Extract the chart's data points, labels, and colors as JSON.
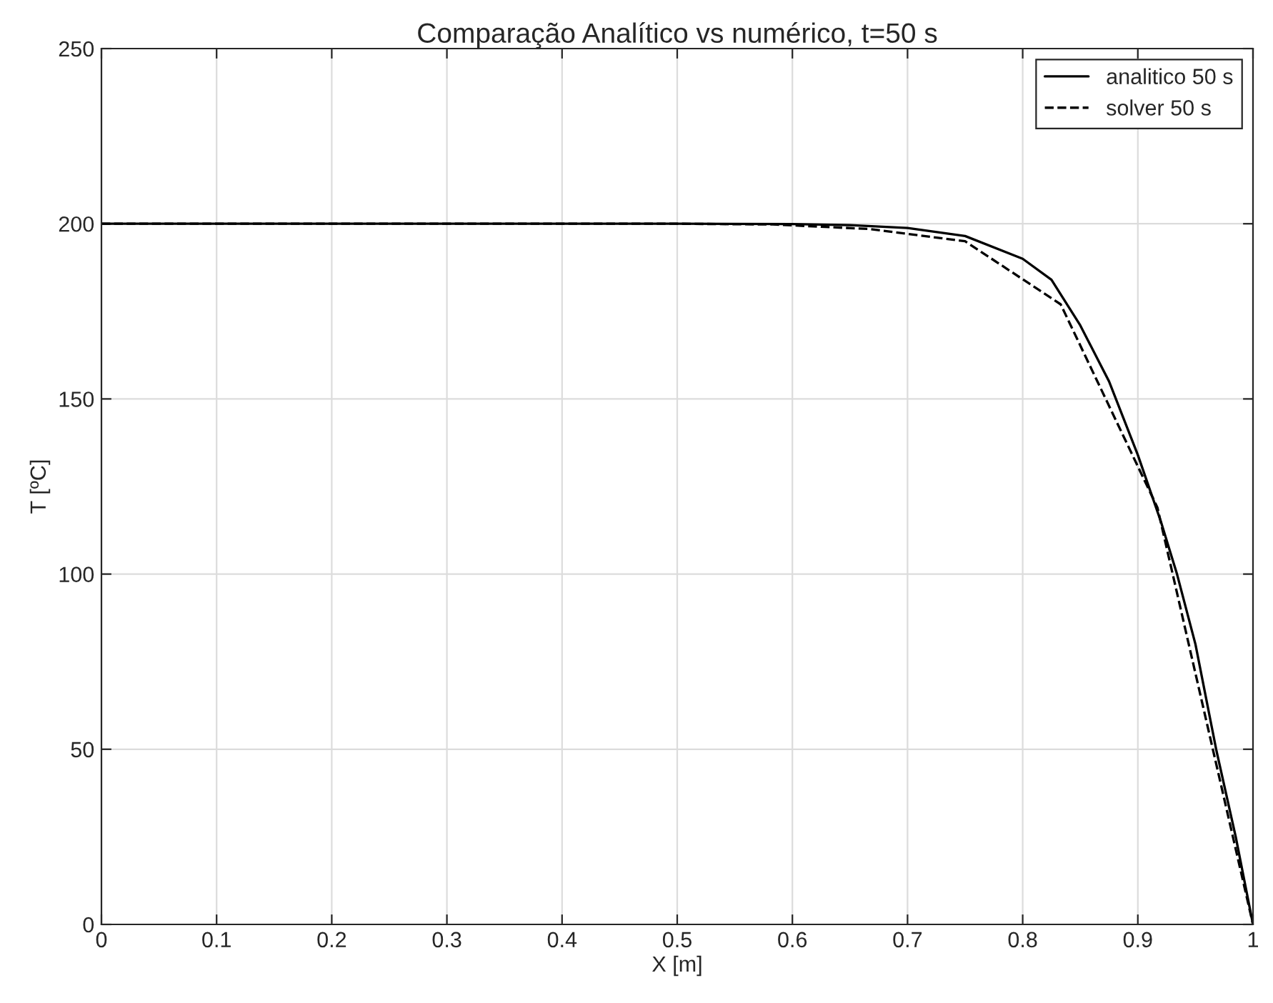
{
  "chart_data": {
    "type": "line",
    "title": "Comparação Analítico vs numérico, t=50 s",
    "xlabel": "X [m]",
    "ylabel": "T [ºC]",
    "series": [
      {
        "name": "analitico 50 s",
        "color": "#000000",
        "line_style": "solid",
        "x": [
          0,
          0.5,
          0.6,
          0.65,
          0.7,
          0.75,
          0.8,
          0.825,
          0.85,
          0.875,
          0.9,
          0.92,
          0.934,
          0.95,
          0.968,
          0.985,
          1
        ],
        "values": [
          200,
          200,
          199.9,
          199.6,
          198.8,
          196.5,
          190,
          184,
          171,
          155,
          134,
          115,
          100,
          80,
          50,
          25,
          0
        ]
      },
      {
        "name": "solver 50 s",
        "color": "#000000",
        "line_style": "dashed",
        "x": [
          0,
          0.5,
          0.583,
          0.667,
          0.75,
          0.833,
          0.917,
          1
        ],
        "values": [
          200,
          200,
          199.8,
          198.5,
          195,
          177,
          119,
          0
        ]
      }
    ],
    "xlim": [
      0,
      1
    ],
    "ylim": [
      0,
      250
    ],
    "xticks": [
      0,
      0.1,
      0.2,
      0.3,
      0.4,
      0.5,
      0.6,
      0.7,
      0.8,
      0.9,
      1
    ],
    "yticks": [
      0,
      50,
      100,
      150,
      200,
      250
    ],
    "grid": true,
    "legend": "top right"
  }
}
